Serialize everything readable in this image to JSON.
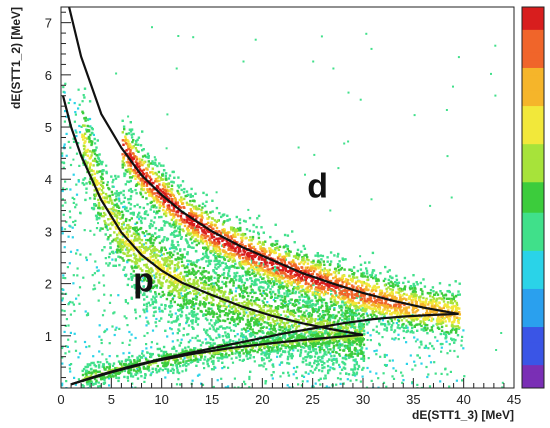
{
  "chart_data": {
    "type": "heatmap",
    "title": "",
    "xlabel": "dE(STT1_3) [MeV]",
    "ylabel": "dE(STT1_2) [MeV]",
    "xlim": [
      0,
      45
    ],
    "ylim": [
      0,
      7.3
    ],
    "x_ticks": [
      "0",
      "5",
      "10",
      "15",
      "20",
      "25",
      "30",
      "35",
      "40",
      "45"
    ],
    "y_ticks": [
      "1",
      "2",
      "3",
      "4",
      "5",
      "6",
      "7"
    ],
    "colorbar": true,
    "color_scale": [
      "#7a2fb5",
      "#3a55e6",
      "#2aa0ee",
      "#2ad3e8",
      "#40e08a",
      "#3ccc3c",
      "#a7e33a",
      "#f2e83a",
      "#f5b52a",
      "#f0652a",
      "#d81e1e"
    ],
    "annotations": [
      {
        "text": "p",
        "x": 8.2,
        "y": 1.85
      },
      {
        "text": "d",
        "x": 25.5,
        "y": 3.65
      }
    ],
    "series": [
      {
        "name": "p",
        "band": [
          [
            2,
            4.9
          ],
          [
            4,
            3.6
          ],
          [
            6,
            2.95
          ],
          [
            8,
            2.55
          ],
          [
            10,
            2.28
          ],
          [
            12,
            2.05
          ],
          [
            15,
            1.8
          ],
          [
            18,
            1.58
          ],
          [
            21,
            1.4
          ],
          [
            24,
            1.24
          ],
          [
            27,
            1.12
          ],
          [
            30,
            1.02
          ]
        ]
      },
      {
        "name": "d",
        "band": [
          [
            6,
            4.65
          ],
          [
            8,
            4.1
          ],
          [
            10,
            3.7
          ],
          [
            12,
            3.35
          ],
          [
            15,
            2.95
          ],
          [
            18,
            2.65
          ],
          [
            21,
            2.4
          ],
          [
            24,
            2.18
          ],
          [
            27,
            1.98
          ],
          [
            30,
            1.8
          ],
          [
            33,
            1.64
          ],
          [
            36,
            1.52
          ],
          [
            39.5,
            1.42
          ]
        ]
      },
      {
        "name": "",
        "band": [
          [
            2,
            0.2
          ],
          [
            5,
            0.35
          ],
          [
            8,
            0.48
          ],
          [
            12,
            0.62
          ],
          [
            16,
            0.74
          ],
          [
            20,
            0.84
          ],
          [
            24,
            0.92
          ],
          [
            28,
            0.98
          ],
          [
            30,
            1.02
          ]
        ]
      }
    ],
    "fit_curves": [
      {
        "points": [
          [
            0.8,
            7.3
          ],
          [
            2,
            6.35
          ],
          [
            4,
            5.25
          ],
          [
            6,
            4.6
          ],
          [
            8,
            4.08
          ],
          [
            10,
            3.7
          ],
          [
            12,
            3.38
          ],
          [
            15,
            3.0
          ],
          [
            18,
            2.7
          ],
          [
            21,
            2.45
          ],
          [
            24,
            2.2
          ],
          [
            27,
            2.0
          ],
          [
            30,
            1.82
          ],
          [
            33,
            1.67
          ],
          [
            36,
            1.54
          ],
          [
            39.5,
            1.42
          ]
        ]
      },
      {
        "points": [
          [
            0.2,
            5.6
          ],
          [
            1,
            5.0
          ],
          [
            2,
            4.45
          ],
          [
            4,
            3.6
          ],
          [
            6,
            2.98
          ],
          [
            8,
            2.55
          ],
          [
            10,
            2.25
          ],
          [
            12,
            2.02
          ],
          [
            15,
            1.78
          ],
          [
            18,
            1.56
          ],
          [
            21,
            1.38
          ],
          [
            24,
            1.24
          ],
          [
            27,
            1.12
          ],
          [
            30,
            1.02
          ]
        ]
      },
      {
        "points": [
          [
            1,
            0.07
          ],
          [
            4,
            0.26
          ],
          [
            7,
            0.42
          ],
          [
            10,
            0.56
          ],
          [
            13,
            0.68
          ],
          [
            16,
            0.8
          ],
          [
            19,
            0.92
          ],
          [
            22,
            1.04
          ],
          [
            25,
            1.14
          ],
          [
            28,
            1.24
          ],
          [
            31,
            1.32
          ],
          [
            34,
            1.37
          ],
          [
            37,
            1.4
          ],
          [
            39.5,
            1.42
          ]
        ]
      },
      {
        "points": [
          [
            1,
            0.07
          ],
          [
            5,
            0.3
          ],
          [
            9,
            0.5
          ],
          [
            13,
            0.65
          ],
          [
            17,
            0.77
          ],
          [
            21,
            0.86
          ],
          [
            24,
            0.92
          ],
          [
            27,
            0.97
          ],
          [
            30,
            1.02
          ]
        ]
      }
    ]
  }
}
